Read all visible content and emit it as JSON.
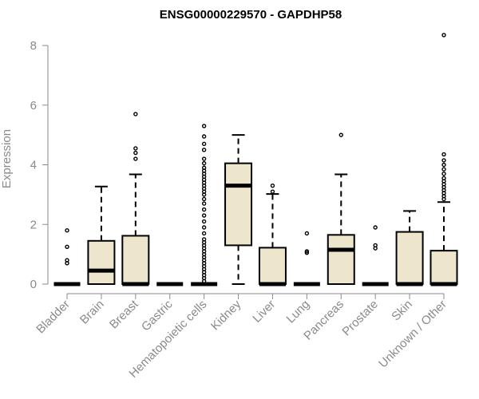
{
  "chart_data": {
    "type": "boxplot",
    "title": "ENSG00000229570 - GAPDHP58",
    "ylabel": "Expression",
    "ylim": [
      0,
      8.4
    ],
    "yticks": [
      0,
      2,
      4,
      6,
      8
    ],
    "box_color": "#ede6cc",
    "categories": [
      "Bladder",
      "Brain",
      "Breast",
      "Gastric",
      "Hematopoietic cells",
      "Kidney",
      "Liver",
      "Lung",
      "Pancreas",
      "Prostate",
      "Skin",
      "Unknown / Other"
    ],
    "boxes": [
      {
        "name": "Bladder",
        "min": 0,
        "q1": 0,
        "median": 0,
        "q3": 0,
        "max": 0,
        "outliers": [
          0.7,
          0.8,
          1.25,
          1.8
        ]
      },
      {
        "name": "Brain",
        "min": 0,
        "q1": 0,
        "median": 0.45,
        "q3": 1.45,
        "max": 3.27,
        "outliers": []
      },
      {
        "name": "Breast",
        "min": 0,
        "q1": 0,
        "median": 0,
        "q3": 1.62,
        "max": 3.68,
        "outliers": [
          4.2,
          4.4,
          4.55,
          5.7
        ]
      },
      {
        "name": "Gastric",
        "min": 0,
        "q1": 0,
        "median": 0,
        "q3": 0,
        "max": 0,
        "outliers": []
      },
      {
        "name": "Hematopoietic cells",
        "min": 0,
        "q1": 0,
        "median": 0,
        "q3": 0,
        "max": 0,
        "outliers": [
          0.1,
          0.2,
          0.3,
          0.4,
          0.5,
          0.6,
          0.7,
          0.8,
          0.9,
          1.0,
          1.1,
          1.2,
          1.3,
          1.4,
          1.5,
          1.7,
          1.9,
          2.1,
          2.3,
          2.5,
          2.7,
          2.85,
          3.0,
          3.1,
          3.2,
          3.3,
          3.4,
          3.5,
          3.6,
          3.7,
          3.8,
          3.9,
          4.05,
          4.2,
          4.5,
          4.7,
          4.95,
          5.3
        ]
      },
      {
        "name": "Kidney",
        "min": 0,
        "q1": 1.3,
        "median": 3.3,
        "q3": 4.05,
        "max": 5.0,
        "outliers": []
      },
      {
        "name": "Liver",
        "min": 0,
        "q1": 0,
        "median": 0,
        "q3": 1.22,
        "max": 3.02,
        "outliers": [
          3.1,
          3.3
        ]
      },
      {
        "name": "Lung",
        "min": 0,
        "q1": 0,
        "median": 0,
        "q3": 0,
        "max": 0,
        "outliers": [
          1.05,
          1.1,
          1.7
        ]
      },
      {
        "name": "Pancreas",
        "min": 0,
        "q1": 0,
        "median": 1.15,
        "q3": 1.65,
        "max": 3.68,
        "outliers": [
          5.0
        ]
      },
      {
        "name": "Prostate",
        "min": 0,
        "q1": 0,
        "median": 0,
        "q3": 0,
        "max": 0,
        "outliers": [
          1.2,
          1.3,
          1.9
        ]
      },
      {
        "name": "Skin",
        "min": 0,
        "q1": 0,
        "median": 0,
        "q3": 1.75,
        "max": 2.45,
        "outliers": []
      },
      {
        "name": "Unknown / Other",
        "min": 0,
        "q1": 0,
        "median": 0,
        "q3": 1.12,
        "max": 2.75,
        "outliers": [
          2.85,
          2.95,
          3.05,
          3.15,
          3.25,
          3.35,
          3.45,
          3.55,
          3.7,
          3.85,
          4.0,
          4.15,
          4.35,
          8.35
        ]
      }
    ]
  }
}
